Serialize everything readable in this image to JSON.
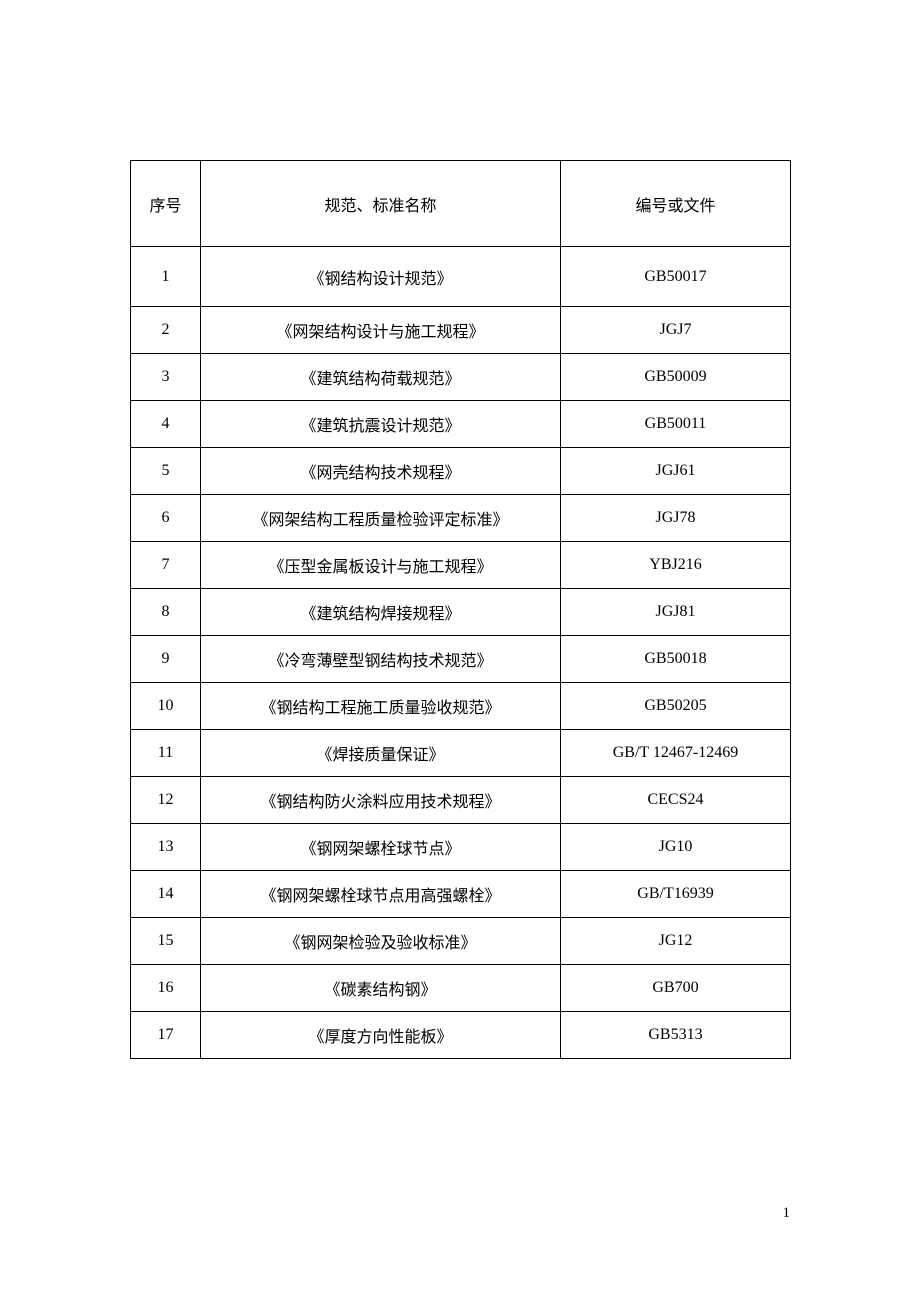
{
  "table": {
    "headers": {
      "seq": "序号",
      "name": "规范、标准名称",
      "code": "编号或文件"
    },
    "rows": [
      {
        "seq": "1",
        "name": "《钢结构设计规范》",
        "code": "GB50017"
      },
      {
        "seq": "2",
        "name": "《网架结构设计与施工规程》",
        "code": "JGJ7"
      },
      {
        "seq": "3",
        "name": "《建筑结构荷载规范》",
        "code": "GB50009"
      },
      {
        "seq": "4",
        "name": "《建筑抗震设计规范》",
        "code": "GB50011"
      },
      {
        "seq": "5",
        "name": "《网壳结构技术规程》",
        "code": "JGJ61"
      },
      {
        "seq": "6",
        "name": "《网架结构工程质量检验评定标准》",
        "code": "JGJ78"
      },
      {
        "seq": "7",
        "name": "《压型金属板设计与施工规程》",
        "code": "YBJ216"
      },
      {
        "seq": "8",
        "name": "《建筑结构焊接规程》",
        "code": "JGJ81"
      },
      {
        "seq": "9",
        "name": "《冷弯薄壁型钢结构技术规范》",
        "code": "GB50018"
      },
      {
        "seq": "10",
        "name": "《钢结构工程施工质量验收规范》",
        "code": "GB50205"
      },
      {
        "seq": "11",
        "name": "《焊接质量保证》",
        "code": "GB/T 12467-12469"
      },
      {
        "seq": "12",
        "name": "《钢结构防火涂料应用技术规程》",
        "code": "CECS24"
      },
      {
        "seq": "13",
        "name": "《钢网架螺栓球节点》",
        "code": "JG10"
      },
      {
        "seq": "14",
        "name": "《钢网架螺栓球节点用高强螺栓》",
        "code": "GB/T16939"
      },
      {
        "seq": "15",
        "name": "《钢网架检验及验收标准》",
        "code": "JG12"
      },
      {
        "seq": "16",
        "name": "《碳素结构钢》",
        "code": "GB700"
      },
      {
        "seq": "17",
        "name": "《厚度方向性能板》",
        "code": "GB5313"
      }
    ],
    "column_widths": {
      "seq": 70,
      "name": 360,
      "code": 230
    },
    "header_row_height": 86,
    "first_data_row_height": 60,
    "data_row_height": 47,
    "font_size": 16,
    "border_color": "#000000",
    "text_color": "#000000",
    "background_color": "#ffffff"
  },
  "page_number": "1"
}
